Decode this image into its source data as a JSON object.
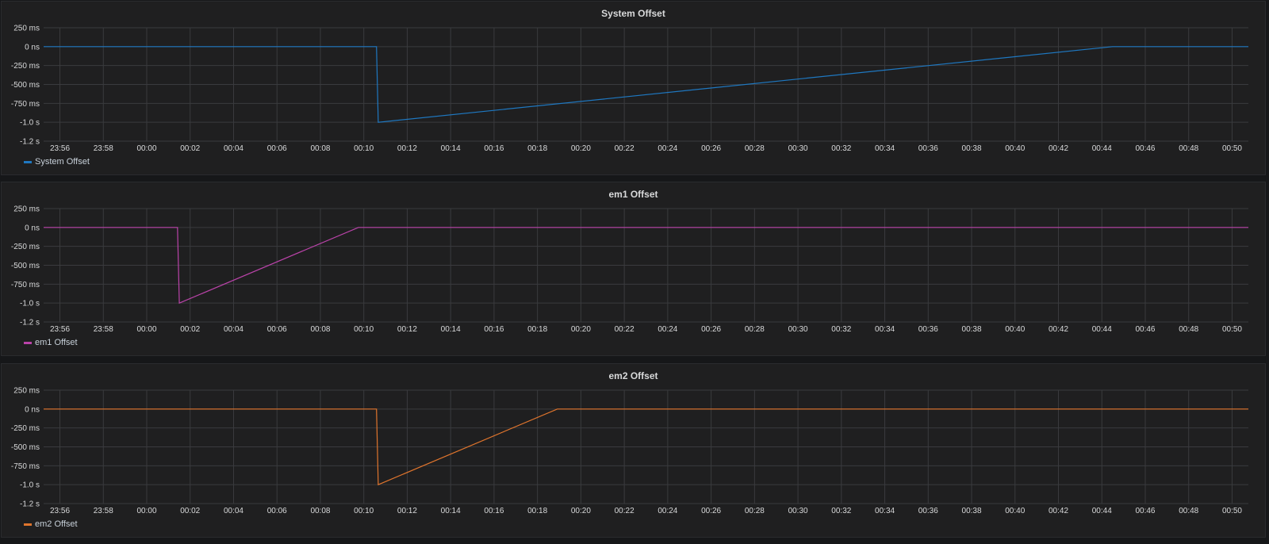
{
  "chart_data": [
    {
      "type": "line",
      "title": "System Offset",
      "series": [
        {
          "name": "System Offset",
          "color": "#1f78c1",
          "points": [
            [
              "23:55:15",
              0
            ],
            [
              "00:10:35",
              0
            ],
            [
              "00:10:40",
              -1.0
            ],
            [
              "00:44:30",
              0
            ],
            [
              "00:50:45",
              0
            ]
          ]
        }
      ],
      "x_ticks": [
        "23:56",
        "23:58",
        "00:00",
        "00:02",
        "00:04",
        "00:06",
        "00:08",
        "00:10",
        "00:12",
        "00:14",
        "00:16",
        "00:18",
        "00:20",
        "00:22",
        "00:24",
        "00:26",
        "00:28",
        "00:30",
        "00:32",
        "00:34",
        "00:36",
        "00:38",
        "00:40",
        "00:42",
        "00:44",
        "00:46",
        "00:48",
        "00:50"
      ],
      "y_ticks": [
        {
          "value": 0.25,
          "label": "250 ms"
        },
        {
          "value": 0,
          "label": "0 ns"
        },
        {
          "value": -0.25,
          "label": "-250 ms"
        },
        {
          "value": -0.5,
          "label": "-500 ms"
        },
        {
          "value": -0.75,
          "label": "-750 ms"
        },
        {
          "value": -1.0,
          "label": "-1.0 s"
        },
        {
          "value": -1.25,
          "label": "-1.2 s"
        }
      ],
      "ylim": [
        -1.25,
        0.25
      ],
      "grid": true,
      "legend_position": "bottom-left"
    },
    {
      "type": "line",
      "title": "em1 Offset",
      "series": [
        {
          "name": "em1 Offset",
          "color": "#ba43a9",
          "points": [
            [
              "23:55:15",
              0
            ],
            [
              "00:01:25",
              0
            ],
            [
              "00:01:30",
              -1.0
            ],
            [
              "00:09:45",
              0
            ],
            [
              "00:50:45",
              0
            ]
          ]
        }
      ],
      "x_ticks": [
        "23:56",
        "23:58",
        "00:00",
        "00:02",
        "00:04",
        "00:06",
        "00:08",
        "00:10",
        "00:12",
        "00:14",
        "00:16",
        "00:18",
        "00:20",
        "00:22",
        "00:24",
        "00:26",
        "00:28",
        "00:30",
        "00:32",
        "00:34",
        "00:36",
        "00:38",
        "00:40",
        "00:42",
        "00:44",
        "00:46",
        "00:48",
        "00:50"
      ],
      "y_ticks": [
        {
          "value": 0.25,
          "label": "250 ms"
        },
        {
          "value": 0,
          "label": "0 ns"
        },
        {
          "value": -0.25,
          "label": "-250 ms"
        },
        {
          "value": -0.5,
          "label": "-500 ms"
        },
        {
          "value": -0.75,
          "label": "-750 ms"
        },
        {
          "value": -1.0,
          "label": "-1.0 s"
        },
        {
          "value": -1.25,
          "label": "-1.2 s"
        }
      ],
      "ylim": [
        -1.25,
        0.25
      ],
      "grid": true,
      "legend_position": "bottom-left"
    },
    {
      "type": "line",
      "title": "em2 Offset",
      "series": [
        {
          "name": "em2 Offset",
          "color": "#e0752d",
          "points": [
            [
              "23:55:15",
              0
            ],
            [
              "00:10:35",
              0
            ],
            [
              "00:10:40",
              -1.0
            ],
            [
              "00:18:55",
              0
            ],
            [
              "00:50:45",
              0
            ]
          ]
        }
      ],
      "x_ticks": [
        "23:56",
        "23:58",
        "00:00",
        "00:02",
        "00:04",
        "00:06",
        "00:08",
        "00:10",
        "00:12",
        "00:14",
        "00:16",
        "00:18",
        "00:20",
        "00:22",
        "00:24",
        "00:26",
        "00:28",
        "00:30",
        "00:32",
        "00:34",
        "00:36",
        "00:38",
        "00:40",
        "00:42",
        "00:44",
        "00:46",
        "00:48",
        "00:50"
      ],
      "y_ticks": [
        {
          "value": 0.25,
          "label": "250 ms"
        },
        {
          "value": 0,
          "label": "0 ns"
        },
        {
          "value": -0.25,
          "label": "-250 ms"
        },
        {
          "value": -0.5,
          "label": "-500 ms"
        },
        {
          "value": -0.75,
          "label": "-750 ms"
        },
        {
          "value": -1.0,
          "label": "-1.0 s"
        },
        {
          "value": -1.25,
          "label": "-1.2 s"
        }
      ],
      "ylim": [
        -1.25,
        0.25
      ],
      "grid": true,
      "legend_position": "bottom-left"
    }
  ]
}
